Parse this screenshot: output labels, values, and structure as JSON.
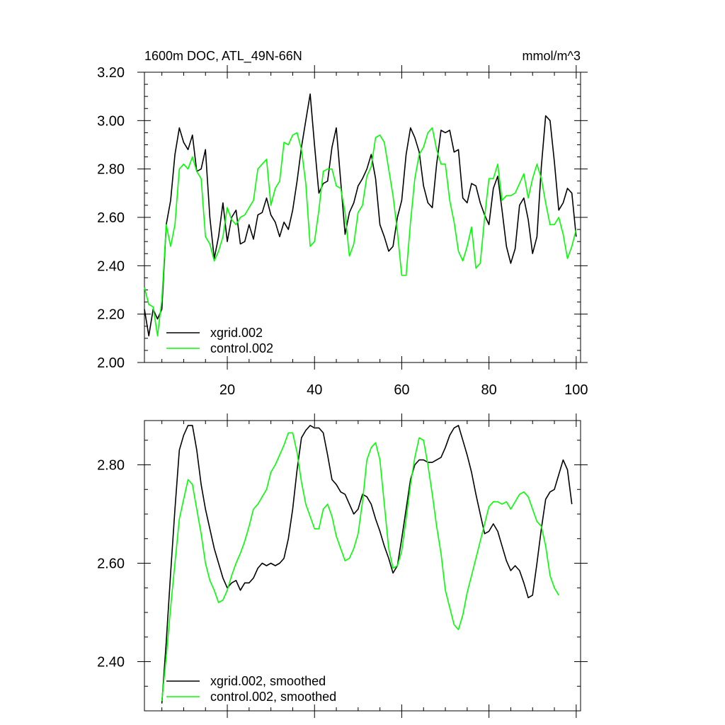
{
  "title_left": "1600m DOC, ATL_49N-66N",
  "title_right": "mmol/m^3",
  "chart_data": [
    {
      "type": "line",
      "title": "1600m DOC, ATL_49N-66N",
      "units": "mmol/m^3",
      "xlim": [
        1,
        101
      ],
      "ylim": [
        2.0,
        3.2
      ],
      "x_ticks": [
        20,
        40,
        60,
        80,
        100
      ],
      "y_ticks": [
        2.0,
        2.2,
        2.4,
        2.6,
        2.8,
        3.0,
        3.2
      ],
      "y_tick_labels": [
        "2.00",
        "2.20",
        "2.40",
        "2.60",
        "2.80",
        "3.00",
        "3.20"
      ],
      "legend_position": "bottom-left",
      "series": [
        {
          "name": "xgrid.002",
          "color": "#000000",
          "x_start": 1,
          "values": [
            2.22,
            2.11,
            2.22,
            2.18,
            2.22,
            2.57,
            2.67,
            2.86,
            2.97,
            2.91,
            2.88,
            2.94,
            2.79,
            2.8,
            2.88,
            2.6,
            2.43,
            2.52,
            2.66,
            2.5,
            2.6,
            2.63,
            2.49,
            2.5,
            2.57,
            2.51,
            2.61,
            2.62,
            2.68,
            2.61,
            2.58,
            2.52,
            2.58,
            2.55,
            2.63,
            2.75,
            2.89,
            3.0,
            3.11,
            2.9,
            2.7,
            2.74,
            2.75,
            2.89,
            2.97,
            2.75,
            2.53,
            2.62,
            2.66,
            2.73,
            2.76,
            2.8,
            2.86,
            2.76,
            2.57,
            2.52,
            2.46,
            2.48,
            2.6,
            2.67,
            2.86,
            2.97,
            2.93,
            2.87,
            2.73,
            2.66,
            2.64,
            2.82,
            2.96,
            2.95,
            2.96,
            2.87,
            2.88,
            2.68,
            2.66,
            2.74,
            2.73,
            2.66,
            2.61,
            2.57,
            2.72,
            2.77,
            2.63,
            2.48,
            2.41,
            2.47,
            2.65,
            2.68,
            2.59,
            2.45,
            2.52,
            2.81,
            3.02,
            3.0,
            2.83,
            2.63,
            2.66,
            2.72,
            2.7,
            2.52
          ]
        },
        {
          "name": "control.002",
          "color": "#00ff00",
          "x_start": 1,
          "values": [
            2.31,
            2.24,
            2.23,
            2.11,
            2.26,
            2.57,
            2.48,
            2.57,
            2.8,
            2.82,
            2.8,
            2.85,
            2.79,
            2.76,
            2.52,
            2.49,
            2.42,
            2.46,
            2.52,
            2.64,
            2.59,
            2.57,
            2.6,
            2.61,
            2.64,
            2.67,
            2.8,
            2.82,
            2.84,
            2.65,
            2.72,
            2.75,
            2.91,
            2.9,
            2.94,
            2.95,
            2.88,
            2.74,
            2.48,
            2.5,
            2.63,
            2.79,
            2.8,
            2.8,
            2.73,
            2.72,
            2.62,
            2.44,
            2.49,
            2.62,
            2.65,
            2.77,
            2.81,
            2.93,
            2.94,
            2.91,
            2.8,
            2.69,
            2.54,
            2.36,
            2.36,
            2.58,
            2.76,
            2.86,
            2.89,
            2.95,
            2.97,
            2.88,
            2.82,
            2.82,
            2.67,
            2.58,
            2.46,
            2.42,
            2.48,
            2.56,
            2.39,
            2.41,
            2.6,
            2.76,
            2.76,
            2.82,
            2.67,
            2.69,
            2.69,
            2.7,
            2.74,
            2.78,
            2.68,
            2.76,
            2.82,
            2.76,
            2.66,
            2.57,
            2.57,
            2.6,
            2.53,
            2.43,
            2.48,
            2.55
          ]
        }
      ]
    },
    {
      "type": "line",
      "xlim": [
        1,
        101
      ],
      "ylim": [
        2.3,
        2.89
      ],
      "x_ticks": [
        20,
        40,
        60,
        80,
        100
      ],
      "y_ticks": [
        2.4,
        2.6,
        2.8
      ],
      "y_tick_labels": [
        "2.40",
        "2.60",
        "2.80"
      ],
      "legend_position": "bottom-left",
      "series": [
        {
          "name": "xgrid.002, smoothed",
          "color": "#000000",
          "x_start": 5,
          "values": [
            2.315,
            2.44,
            2.58,
            2.71,
            2.83,
            2.86,
            2.88,
            2.88,
            2.83,
            2.76,
            2.71,
            2.67,
            2.63,
            2.6,
            2.57,
            2.55,
            2.56,
            2.565,
            2.545,
            2.56,
            2.56,
            2.57,
            2.59,
            2.6,
            2.595,
            2.6,
            2.595,
            2.6,
            2.61,
            2.65,
            2.71,
            2.79,
            2.855,
            2.87,
            2.88,
            2.875,
            2.875,
            2.865,
            2.82,
            2.77,
            2.76,
            2.745,
            2.74,
            2.72,
            2.7,
            2.71,
            2.74,
            2.735,
            2.72,
            2.69,
            2.665,
            2.635,
            2.61,
            2.58,
            2.595,
            2.65,
            2.71,
            2.77,
            2.8,
            2.81,
            2.81,
            2.805,
            2.805,
            2.81,
            2.815,
            2.835,
            2.86,
            2.875,
            2.88,
            2.85,
            2.82,
            2.785,
            2.74,
            2.7,
            2.66,
            2.665,
            2.68,
            2.665,
            2.635,
            2.605,
            2.585,
            2.595,
            2.585,
            2.56,
            2.53,
            2.535,
            2.6,
            2.67,
            2.73,
            2.745,
            2.75,
            2.78,
            2.81,
            2.79,
            2.72
          ]
        },
        {
          "name": "control.002, smoothed",
          "color": "#00ff00",
          "x_start": 5,
          "values": [
            2.32,
            2.41,
            2.51,
            2.6,
            2.69,
            2.73,
            2.77,
            2.76,
            2.71,
            2.66,
            2.6,
            2.565,
            2.545,
            2.52,
            2.525,
            2.545,
            2.575,
            2.6,
            2.62,
            2.645,
            2.675,
            2.71,
            2.72,
            2.735,
            2.75,
            2.785,
            2.8,
            2.82,
            2.84,
            2.865,
            2.865,
            2.825,
            2.765,
            2.72,
            2.695,
            2.67,
            2.67,
            2.71,
            2.72,
            2.695,
            2.655,
            2.63,
            2.605,
            2.61,
            2.63,
            2.66,
            2.725,
            2.81,
            2.835,
            2.845,
            2.81,
            2.72,
            2.63,
            2.59,
            2.595,
            2.625,
            2.69,
            2.76,
            2.815,
            2.855,
            2.85,
            2.8,
            2.74,
            2.675,
            2.62,
            2.545,
            2.51,
            2.475,
            2.465,
            2.495,
            2.54,
            2.575,
            2.61,
            2.645,
            2.68,
            2.715,
            2.725,
            2.725,
            2.72,
            2.725,
            2.71,
            2.725,
            2.74,
            2.745,
            2.735,
            2.71,
            2.685,
            2.675,
            2.635,
            2.575,
            2.55,
            2.535
          ]
        }
      ]
    }
  ]
}
